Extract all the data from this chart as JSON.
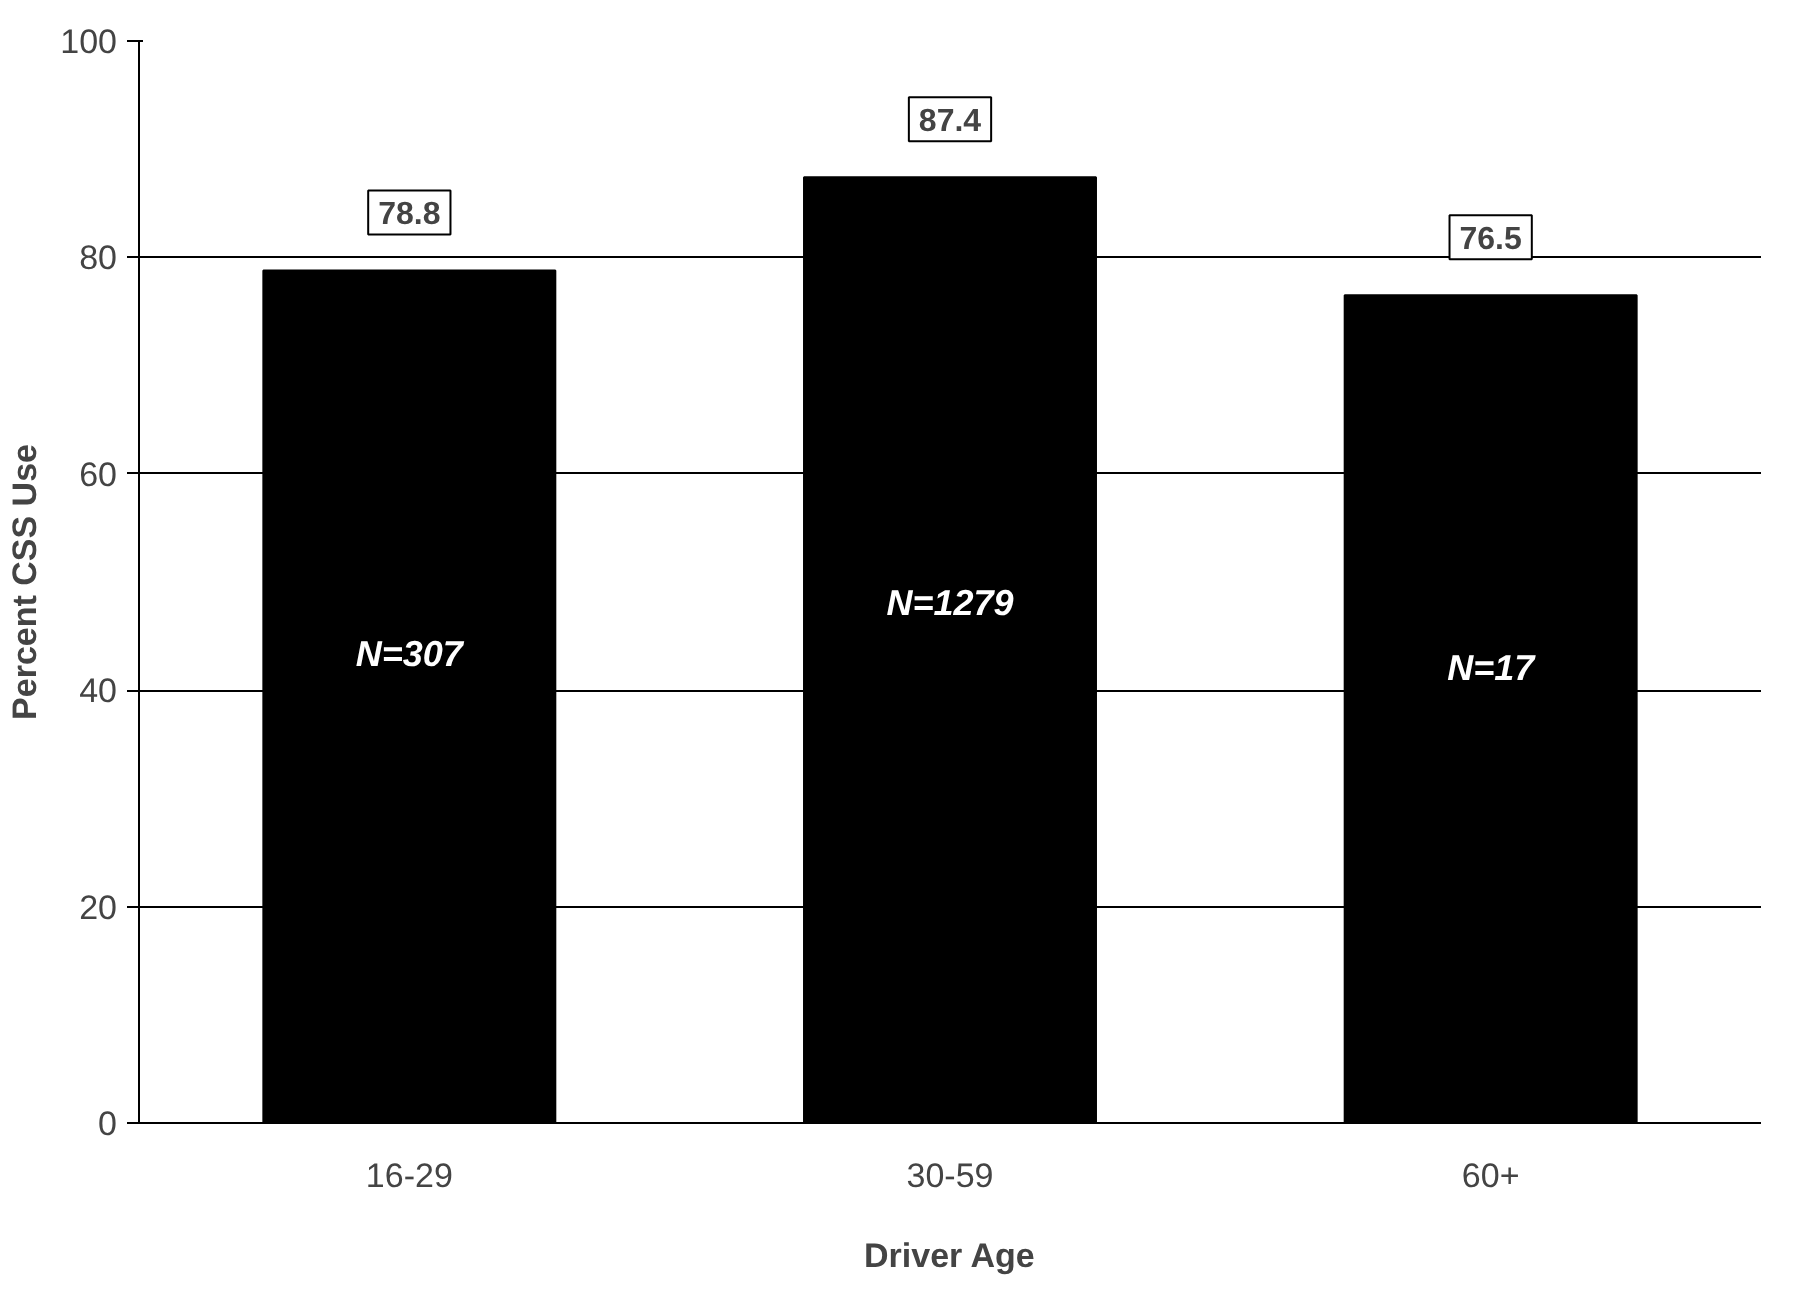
{
  "chart_data": {
    "type": "bar",
    "xlabel": "Driver Age",
    "ylabel": "Percent CSS Use",
    "categories": [
      "16-29",
      "30-59",
      "60+"
    ],
    "values": [
      78.8,
      87.4,
      76.5
    ],
    "color": "#000000",
    "ylim": [
      0,
      100
    ],
    "yticks": [
      0,
      20,
      40,
      60,
      80,
      100
    ],
    "grid": "y",
    "data_labels": true,
    "annotations": [
      "N=307",
      "N=1279",
      "N=17"
    ]
  }
}
